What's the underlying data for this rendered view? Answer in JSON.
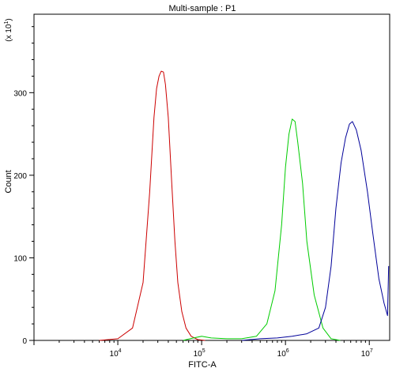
{
  "chart_data": {
    "type": "line",
    "title": "Multi-sample : P1",
    "xlabel": "FITC-A",
    "ylabel": "Count",
    "y_multiplier_label": "(x 10",
    "y_multiplier_exp": "1",
    "y_multiplier_close": ")",
    "x_scale": "log",
    "xlim": [
      1000,
      17500000
    ],
    "ylim": [
      0,
      395
    ],
    "grid": false,
    "legend": "none",
    "x_ticks": [
      {
        "base": "10",
        "exp": "4",
        "value": 10000
      },
      {
        "base": "10",
        "exp": "5",
        "value": 100000
      },
      {
        "base": "10",
        "exp": "6",
        "value": 1000000
      },
      {
        "base": "10",
        "exp": "7",
        "value": 10000000
      }
    ],
    "y_ticks": [
      {
        "label": "0",
        "value": 0
      },
      {
        "label": "100",
        "value": 100
      },
      {
        "label": "200",
        "value": 200
      },
      {
        "label": "300",
        "value": 300
      }
    ],
    "series": [
      {
        "color": "#cc0000",
        "x": [
          6000,
          10000,
          15000,
          20000,
          24000,
          27000,
          29000,
          31000,
          33000,
          35000,
          37000,
          40000,
          44000,
          48000,
          52000,
          58000,
          65000,
          75000,
          90000,
          110000
        ],
        "y": [
          0,
          2,
          15,
          70,
          180,
          270,
          305,
          320,
          326,
          325,
          310,
          270,
          190,
          120,
          70,
          35,
          15,
          5,
          1,
          0
        ]
      },
      {
        "color": "#00cc00",
        "x": [
          60000,
          80000,
          100000,
          130000,
          200000,
          300000,
          450000,
          600000,
          750000,
          900000,
          1000000,
          1100000,
          1200000,
          1300000,
          1400000,
          1600000,
          1800000,
          2200000,
          2800000,
          3500000,
          4500000
        ],
        "y": [
          0,
          3,
          5,
          3,
          2,
          2,
          5,
          20,
          60,
          140,
          210,
          250,
          268,
          265,
          240,
          190,
          120,
          55,
          15,
          2,
          0
        ]
      },
      {
        "color": "#000099",
        "x": [
          300000,
          500000,
          800000,
          1200000,
          1800000,
          2500000,
          3000000,
          3500000,
          4000000,
          4600000,
          5200000,
          5800000,
          6300000,
          7000000,
          8000000,
          9500000,
          11000000,
          13000000,
          15000000,
          16500000,
          17000000
        ],
        "y": [
          0,
          2,
          3,
          5,
          8,
          15,
          40,
          90,
          160,
          215,
          245,
          262,
          265,
          255,
          230,
          180,
          130,
          75,
          45,
          30,
          90
        ]
      }
    ]
  }
}
